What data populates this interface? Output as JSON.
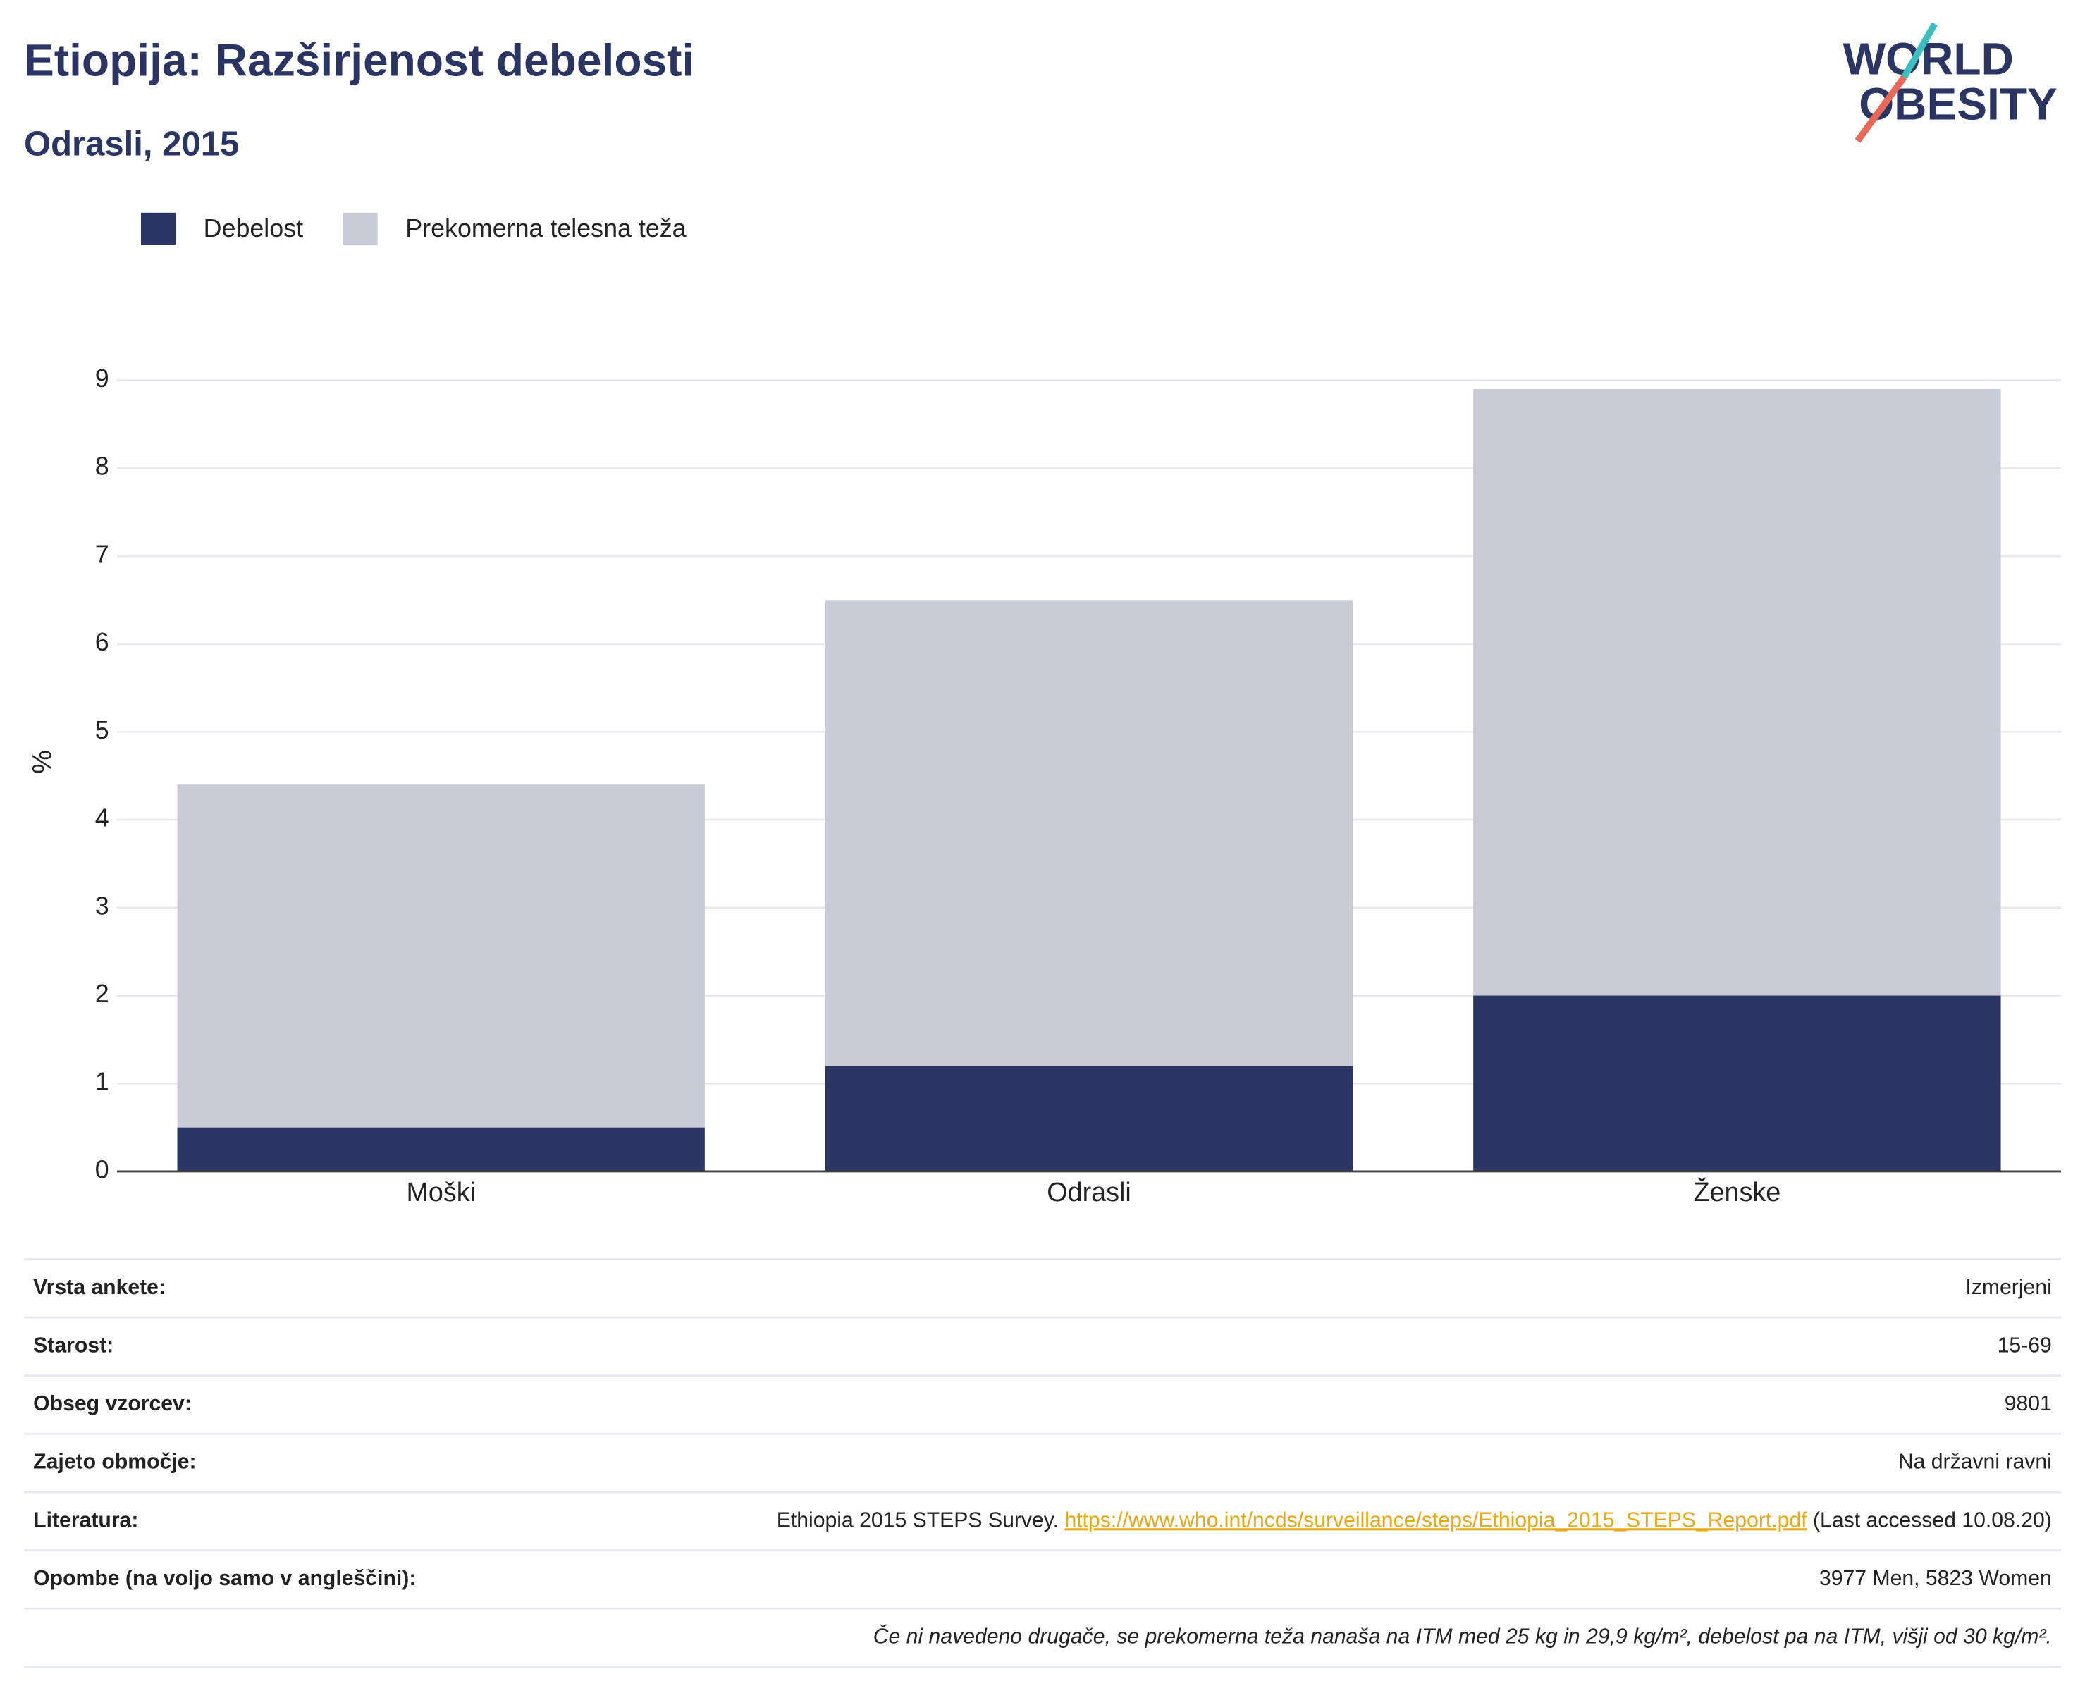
{
  "chart_data": {
    "type": "stacked_bar",
    "title": "Etiopija: Razširjenost debelosti",
    "subtitle": "Odrasli, 2015",
    "logo": [
      "WORLD",
      "OBESITY"
    ],
    "y_label": "%",
    "categories": [
      "Moški",
      "Odrasli",
      "Ženske"
    ],
    "series": [
      {
        "name": "Debelost",
        "color": "#2a3563",
        "values": [
          0.5,
          1.2,
          2.0
        ]
      },
      {
        "name": "Prekomerna telesna teža",
        "color": "#c9cbd7",
        "values": [
          3.9,
          5.3,
          6.9
        ]
      }
    ],
    "ylim": [
      0,
      9
    ],
    "yticks": [
      0,
      1,
      2,
      3,
      4,
      5,
      6,
      7,
      8,
      9
    ],
    "grid": true,
    "legend": "top-left"
  },
  "table": {
    "rows": [
      {
        "label": "Vrsta ankete:",
        "value": "Izmerjeni"
      },
      {
        "label": "Starost:",
        "value": "15-69"
      },
      {
        "label": "Obseg vzorcev:",
        "value": "9801"
      },
      {
        "label": "Zajeto območje:",
        "value": "Na državni ravni"
      },
      {
        "label": "Literatura:",
        "value": [
          "Ethiopia 2015 STEPS Survey. ",
          "https://www.who.int/ncds/surveillance/steps/Ethiopia_2015_STEPS_Report.pdf",
          " (Last accessed 10.08.20)"
        ]
      },
      {
        "label": "Opombe (na voljo samo v angleščini):",
        "value": "3977 Men, 5823 Women"
      }
    ],
    "footnote": "Če ni navedeno drugače, se prekomerna teža nanaša na ITM med 25 kg in 29,9 kg/m², debelost pa na ITM, višji od 30 kg/m²."
  }
}
